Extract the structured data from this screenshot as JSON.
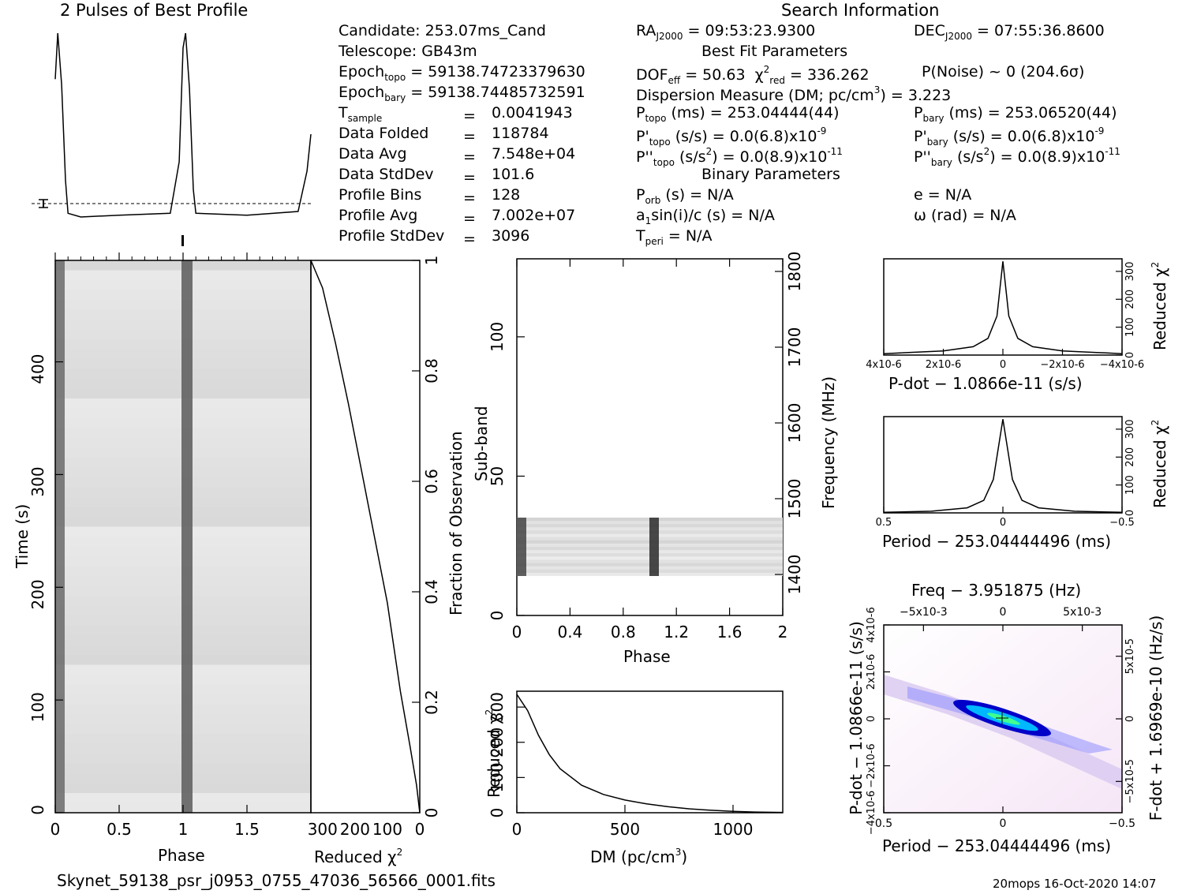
{
  "title_profile": "2 Pulses of Best Profile",
  "title_search": "Search Information",
  "info_left": [
    {
      "label": "Candidate:  253.07ms_Cand"
    },
    {
      "label": "Telescope:  GB43m"
    },
    {
      "label": "Epoch",
      "sub": "topo",
      "value": " = 59138.74723379630"
    },
    {
      "label": "Epoch",
      "sub": "bary",
      "value": " = 59138.74485732591"
    },
    {
      "label": "T",
      "sub": "sample",
      "value": "0.0041943"
    },
    {
      "label": "Data Folded",
      "value": "118784"
    },
    {
      "label": "Data Avg",
      "value": "7.548e+04"
    },
    {
      "label": "Data StdDev",
      "value": "101.6"
    },
    {
      "label": "Profile Bins",
      "value": "128"
    },
    {
      "label": "Profile Avg",
      "value": "7.002e+07"
    },
    {
      "label": "Profile StdDev",
      "value": "3096"
    }
  ],
  "search": {
    "ra": "RA",
    "ra_sub": "J2000",
    "ra_value": " = 09:53:23.9300",
    "dec": "DEC",
    "dec_sub": "J2000",
    "dec_value": " = 07:55:36.8600",
    "best_fit_header": "Best Fit Parameters",
    "dof": "DOF",
    "dof_sub": "eff",
    "dof_value": " = 50.63",
    "chi": "χ",
    "chi_sup": "2",
    "chi_sub": "red",
    "chi_value": " = 336.262",
    "pnoise": "P(Noise) ~ 0    (204.6σ)",
    "dm_line": "Dispersion Measure (DM; pc/cm",
    "dm_sup": "3",
    "dm_value": ") = 3.223",
    "ptopo": "P",
    "ptopo_sub": "topo",
    "ptopo_value": " (ms) =  253.04444(44)",
    "pbary": "P",
    "pbary_sub": "bary",
    "pbary_value": " (ms) =  253.06520(44)",
    "pdtopo": "P'",
    "pdtopo_sub": "topo",
    "pdtopo_value": " (s/s) = 0.0(6.8)x10",
    "pdtopo_exp": "-9",
    "pdbary": "P'",
    "pdbary_sub": "bary",
    "pdbary_value": " (s/s) = 0.0(6.8)x10",
    "pdbary_exp": "-9",
    "pddtopo": "P''",
    "pddtopo_sub": "topo",
    "pddtopo_value": " (s/s",
    "pddtopo_sup": "2",
    "pddtopo_value2": ") = 0.0(8.9)x10",
    "pddtopo_exp": "-11",
    "pddbary": "P''",
    "pddbary_sub": "bary",
    "pddbary_value": " (s/s",
    "pddbary_sup": "2",
    "pddbary_value2": ") = 0.0(8.9)x10",
    "pddbary_exp": "-11",
    "binary_header": "Binary Parameters",
    "porb": "P",
    "porb_sub": "orb",
    "porb_value": " (s) = N/A",
    "e": "e = N/A",
    "asini": "a",
    "asini_sub": "1",
    "asini_value": "sin(i)/c (s) = N/A",
    "omega": "ω (rad) = N/A",
    "tperi": "T",
    "tperi_sub": "peri",
    "tperi_value": " = N/A"
  },
  "footer": {
    "filename": "Skynet_59138_psr_j0953_0755_47036_56566_0001.fits",
    "stamp": "20mops 16-Oct-2020 14:07"
  },
  "chart_data": [
    {
      "type": "line",
      "name": "profile",
      "title": "2 Pulses of Best Profile",
      "x": [
        0,
        0.02,
        0.05,
        0.08,
        0.1,
        0.2,
        0.5,
        0.9,
        0.97,
        1.0,
        1.02,
        1.05,
        1.08,
        1.1,
        1.5,
        1.9,
        1.97,
        2.0
      ],
      "values": [
        0.75,
        1.0,
        0.72,
        0.2,
        0.02,
        0.0,
        0.01,
        0.02,
        0.3,
        0.92,
        1.0,
        0.7,
        0.15,
        0.02,
        0.01,
        0.03,
        0.25,
        0.45
      ],
      "xlim": [
        0,
        2
      ]
    },
    {
      "type": "heatmap",
      "name": "time-phase",
      "xlabel": "Phase",
      "ylabel": "Time (s)",
      "xlim": [
        0,
        2
      ],
      "ylim": [
        0,
        490
      ],
      "x_ticks": [
        "0",
        "0.5",
        "1",
        "1.5"
      ],
      "y_ticks": [
        "0",
        "100",
        "200",
        "300",
        "400"
      ],
      "pulse_phases": [
        0.02,
        1.02
      ]
    },
    {
      "type": "line",
      "name": "time-chi2",
      "xlabel": "Reduced χ2",
      "ylabel": "Fraction of Observation",
      "x_ticks": [
        "300",
        "200",
        "100",
        "0"
      ],
      "y_ticks": [
        "0",
        "0.2",
        "0.4",
        "0.6",
        "0.8",
        "1"
      ],
      "xlim": [
        336,
        0
      ],
      "ylim": [
        0,
        1
      ],
      "x": [
        0,
        10,
        30,
        60,
        100,
        140,
        180,
        220,
        260,
        300,
        336
      ],
      "y": [
        0.0,
        0.05,
        0.12,
        0.22,
        0.38,
        0.5,
        0.62,
        0.74,
        0.85,
        0.95,
        1.0
      ]
    },
    {
      "type": "heatmap",
      "name": "subband-phase",
      "xlabel": "Phase",
      "ylabel": "Sub-band",
      "y2label": "Frequency (MHz)",
      "xlim": [
        0,
        2
      ],
      "ylim": [
        0,
        128
      ],
      "x_ticks": [
        "0",
        "0.4",
        "0.8",
        "1.2",
        "1.6",
        "2"
      ],
      "y_ticks": [
        "0",
        "50",
        "100"
      ],
      "y2_ticks": [
        "1400",
        "1500",
        "1600",
        "1700",
        "1800"
      ],
      "occupied_subbands": [
        15,
        36
      ]
    },
    {
      "type": "line",
      "name": "dm-chi2",
      "xlabel": "DM (pc/cm3)",
      "ylabel": "Reduced χ2",
      "xlim": [
        0,
        1230
      ],
      "ylim": [
        0,
        345
      ],
      "x_ticks": [
        "0",
        "500",
        "1000"
      ],
      "y_ticks": [
        "0",
        "100",
        "200",
        "300"
      ],
      "x": [
        0,
        50,
        100,
        150,
        200,
        300,
        400,
        500,
        600,
        700,
        800,
        900,
        1000,
        1100,
        1230
      ],
      "y": [
        336,
        290,
        220,
        165,
        125,
        78,
        52,
        36,
        25,
        17,
        11,
        7,
        4,
        2,
        1
      ]
    },
    {
      "type": "line",
      "name": "pdot-chi2",
      "xlabel": "P-dot − 1.0866e-11 (s/s)",
      "ylabel": "Reduced χ2",
      "x_ticks": [
        "4x10-6",
        "2x10-6",
        "0",
        "−2x10-6",
        "−4x10-6"
      ],
      "y_ticks": [
        "0",
        "100",
        "200",
        "300"
      ],
      "xlim": [
        4e-06,
        -4e-06
      ],
      "ylim": [
        0,
        345
      ],
      "x": [
        4e-06,
        2e-06,
        1e-06,
        5e-07,
        2e-07,
        0,
        -2e-07,
        -5e-07,
        -1e-06,
        -2e-06,
        -4e-06
      ],
      "y": [
        5,
        15,
        30,
        60,
        140,
        336,
        140,
        60,
        30,
        15,
        5
      ]
    },
    {
      "type": "line",
      "name": "period-chi2",
      "xlabel": "Period − 253.04444496 (ms)",
      "ylabel": "Reduced χ2",
      "x_ticks": [
        "0.5",
        "0",
        "−0.5"
      ],
      "y_ticks": [
        "0",
        "100",
        "200",
        "300"
      ],
      "xlim": [
        0.5,
        -0.5
      ],
      "ylim": [
        0,
        345
      ],
      "x": [
        0.5,
        0.3,
        0.15,
        0.08,
        0.04,
        0,
        -0.04,
        -0.08,
        -0.15,
        -0.3,
        -0.5
      ],
      "y": [
        2,
        6,
        18,
        45,
        120,
        336,
        120,
        45,
        18,
        6,
        2
      ]
    },
    {
      "type": "heatmap",
      "name": "period-pdot",
      "title": "Freq − 3.951875 (Hz)",
      "xlabel": "Period − 253.04444496 (ms)",
      "ylabel": "P-dot − 1.0866e-11 (s/s)",
      "y2label": "F-dot + 1.6969e-10 (Hz/s)",
      "x_ticks": [
        "0.5",
        "0",
        "−0.5"
      ],
      "top_ticks": [
        "−5x10-3",
        "0",
        "5x10-3"
      ],
      "y_ticks": [
        "4x10-6",
        "2x10-6",
        "0",
        "−2x10-6",
        "−4x10-6"
      ],
      "y2_ticks": [
        "5x10-5",
        "0",
        "−5x10-5"
      ],
      "xlim": [
        0.5,
        -0.5
      ],
      "colors": [
        "#ffffff",
        "#f0d8f0",
        "#8080ff",
        "#0000c0",
        "#00c0ff",
        "#40ff80"
      ]
    }
  ]
}
